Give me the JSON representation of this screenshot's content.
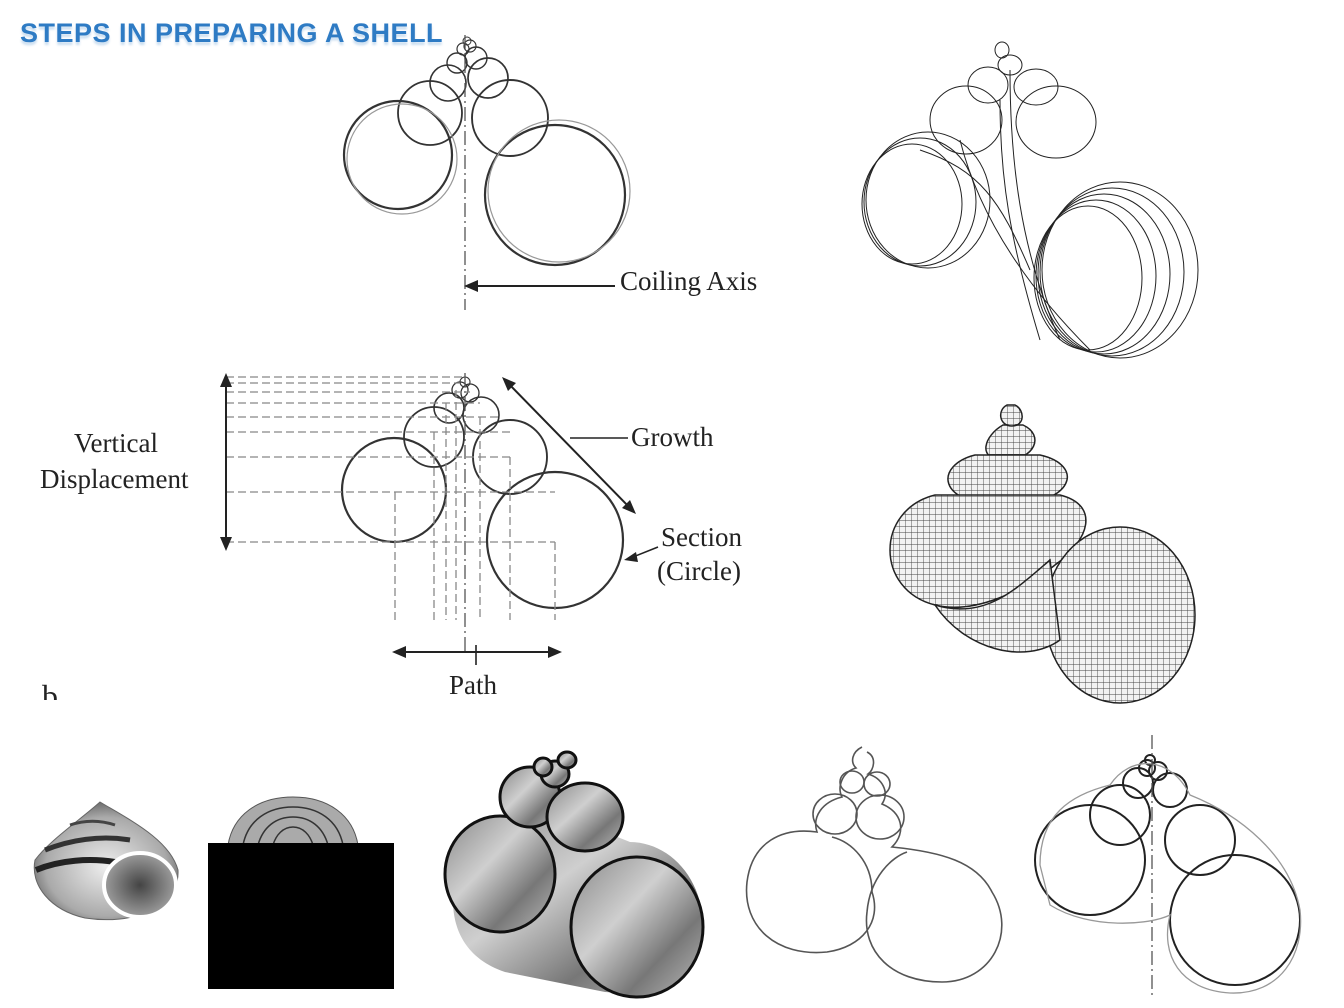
{
  "title": "STEPS IN PREPARING A SHELL",
  "labels": {
    "coiling_axis": "Coiling Axis",
    "vertical": "Vertical",
    "displacement": "Displacement",
    "growth": "Growth",
    "section": "Section",
    "circle": "(Circle)",
    "path": "Path",
    "panel_letter": "b"
  },
  "colors": {
    "title": "#2e7bc4",
    "line": "#333333",
    "mask": "#000000"
  }
}
